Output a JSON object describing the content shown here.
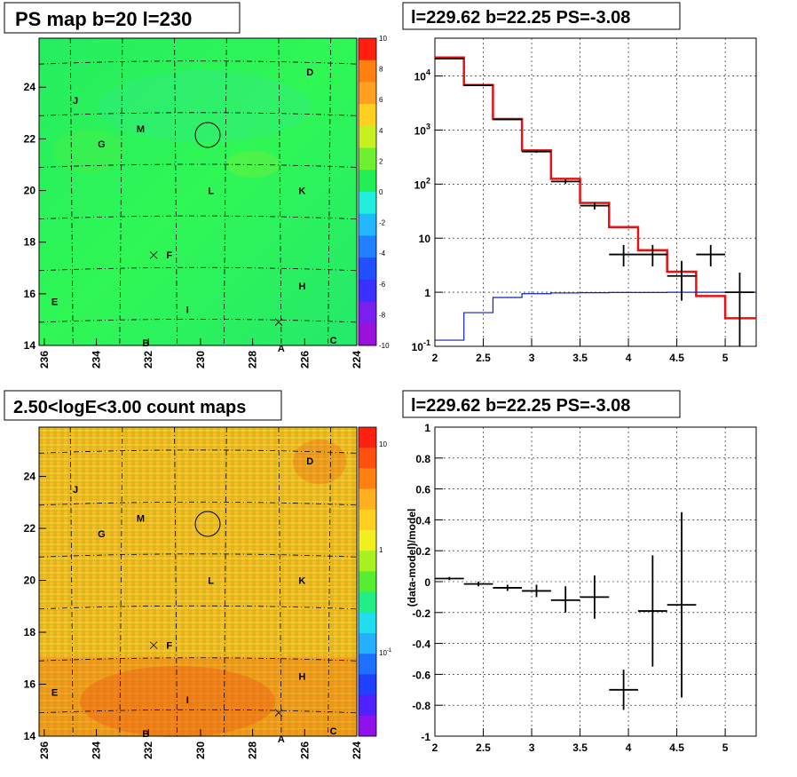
{
  "panels": {
    "ps_map": {
      "title": "PS map b=20 l=230",
      "x_ticks": [
        "236",
        "234",
        "232",
        "230",
        "228",
        "226",
        "224"
      ],
      "y_ticks": [
        "14",
        "16",
        "18",
        "20",
        "22",
        "24"
      ],
      "colorbar_ticks": [
        "10",
        "8",
        "6",
        "4",
        "2",
        "0",
        "-2",
        "-4",
        "-6",
        "-8",
        "-10"
      ],
      "colorbar_colors": [
        "#ff2010",
        "#ff8010",
        "#ffa020",
        "#ffd020",
        "#c8f020",
        "#6ef030",
        "#22ee55",
        "#22eedd",
        "#22b8ff",
        "#2080ff",
        "#2050ff",
        "#3a30ff",
        "#7a20ee",
        "#9a10dd"
      ]
    },
    "count_map": {
      "title": "2.50<logE<3.00 count maps",
      "x_ticks": [
        "236",
        "234",
        "232",
        "230",
        "228",
        "226",
        "224"
      ],
      "y_ticks": [
        "14",
        "16",
        "18",
        "20",
        "22",
        "24"
      ],
      "colorbar_ticks": [
        "10",
        "1",
        "10-1"
      ],
      "colorbar_colors": [
        "#ff2010",
        "#ff5010",
        "#ff8010",
        "#ffb020",
        "#ffd020",
        "#f0f020",
        "#a8f020",
        "#55ee30",
        "#22ee88",
        "#22ddee",
        "#22b0ff",
        "#2070ff",
        "#2040ff",
        "#5020ff",
        "#9010ee"
      ]
    },
    "spectrum": {
      "title": "l=229.62 b=22.25 PS=-3.08",
      "x_ticks": [
        "2",
        "2.5",
        "3",
        "3.5",
        "4",
        "4.5",
        "5"
      ],
      "y_ticks": [
        "10-1",
        "1",
        "10",
        "102",
        "103",
        "104"
      ]
    },
    "residual": {
      "title": "l=229.62 b=22.25 PS=-3.08",
      "ylabel": "(data-model)/model",
      "x_ticks": [
        "2",
        "2.5",
        "3",
        "3.5",
        "4",
        "4.5",
        "5"
      ],
      "y_ticks": [
        "1",
        "0.8",
        "0.6",
        "0.4",
        "0.2",
        "0",
        "-0.2",
        "-0.4",
        "-0.6",
        "-0.8",
        "-1"
      ]
    }
  },
  "map_sources": [
    {
      "label": "A",
      "l": 226.9,
      "b": 13.9
    },
    {
      "label": "B",
      "l": 232.1,
      "b": 14.1
    },
    {
      "label": "C",
      "l": 224.9,
      "b": 14.2
    },
    {
      "label": "D",
      "l": 225.8,
      "b": 24.6
    },
    {
      "label": "E",
      "l": 235.6,
      "b": 15.7
    },
    {
      "label": "F",
      "l": 231.2,
      "b": 17.5
    },
    {
      "label": "G",
      "l": 233.8,
      "b": 21.8
    },
    {
      "label": "H",
      "l": 226.1,
      "b": 16.3
    },
    {
      "label": "I",
      "l": 230.5,
      "b": 15.4
    },
    {
      "label": "J",
      "l": 234.8,
      "b": 23.5
    },
    {
      "label": "K",
      "l": 226.1,
      "b": 20.0
    },
    {
      "label": "L",
      "l": 229.6,
      "b": 20.0
    },
    {
      "label": "M",
      "l": 232.3,
      "b": 22.4
    }
  ],
  "map_crosses": [
    {
      "l": 231.8,
      "b": 17.5
    },
    {
      "l": 227.0,
      "b": 14.9
    }
  ],
  "roi": {
    "l": 229.62,
    "b": 22.25
  },
  "chart_data": [
    {
      "type": "line",
      "title": "l=229.62 b=22.25 PS=-3.08",
      "xlabel": "",
      "ylabel": "",
      "xlim": [
        2,
        5.32
      ],
      "ylim": [
        0.1,
        50000
      ],
      "y_scale": "log",
      "grid": true,
      "bin_edges": [
        2,
        2.3,
        2.6,
        2.9,
        3.2,
        3.5,
        3.8,
        4.1,
        4.4,
        4.7,
        5.0,
        5.32
      ],
      "series": [
        {
          "color": "#e81010",
          "values": [
            22000,
            6800,
            1600,
            420,
            125,
            45,
            16,
            6,
            2.4,
            0.85,
            0.33
          ]
        },
        {
          "color": "#1020c0",
          "values": [
            0.13,
            0.42,
            0.8,
            0.94,
            0.97,
            0.98,
            0.99,
            0.99,
            1.0,
            1.0,
            1.0
          ]
        }
      ],
      "points": [
        {
          "x": 2.15,
          "y": 21000,
          "xerr": 0.15,
          "ylo": 20700,
          "yhi": 21300
        },
        {
          "x": 2.45,
          "y": 6700,
          "xerr": 0.15,
          "ylo": 6600,
          "yhi": 6800
        },
        {
          "x": 2.75,
          "y": 1570,
          "xerr": 0.15,
          "ylo": 1530,
          "yhi": 1610
        },
        {
          "x": 3.05,
          "y": 400,
          "xerr": 0.15,
          "ylo": 380,
          "yhi": 420
        },
        {
          "x": 3.35,
          "y": 112,
          "xerr": 0.15,
          "ylo": 102,
          "yhi": 122
        },
        {
          "x": 3.65,
          "y": 40,
          "xerr": 0.15,
          "ylo": 34,
          "yhi": 46
        },
        {
          "x": 3.95,
          "y": 5,
          "xerr": 0.15,
          "ylo": 3,
          "yhi": 7.5
        },
        {
          "x": 4.25,
          "y": 5,
          "xerr": 0.15,
          "ylo": 3,
          "yhi": 7.5
        },
        {
          "x": 4.55,
          "y": 2,
          "xerr": 0.15,
          "ylo": 0.7,
          "yhi": 3.8
        },
        {
          "x": 4.85,
          "y": 5,
          "xerr": 0.15,
          "ylo": 3,
          "yhi": 7.5
        },
        {
          "x": 5.15,
          "y": 1,
          "xerr": 0.15,
          "ylo": 0.1,
          "yhi": 2.3
        }
      ]
    },
    {
      "type": "scatter",
      "title": "l=229.62 b=22.25 PS=-3.08",
      "xlabel": "",
      "ylabel": "(data-model)/model",
      "xlim": [
        2,
        5.32
      ],
      "ylim": [
        -1,
        1
      ],
      "grid": true,
      "points": [
        {
          "x": 2.15,
          "y": 0.02,
          "xerr": 0.15,
          "ylo": 0.01,
          "yhi": 0.03
        },
        {
          "x": 2.45,
          "y": -0.015,
          "xerr": 0.15,
          "ylo": -0.03,
          "yhi": 0.0
        },
        {
          "x": 2.75,
          "y": -0.04,
          "xerr": 0.15,
          "ylo": -0.06,
          "yhi": -0.02
        },
        {
          "x": 3.05,
          "y": -0.06,
          "xerr": 0.15,
          "ylo": -0.1,
          "yhi": -0.02
        },
        {
          "x": 3.35,
          "y": -0.12,
          "xerr": 0.15,
          "ylo": -0.2,
          "yhi": -0.03
        },
        {
          "x": 3.65,
          "y": -0.1,
          "xerr": 0.15,
          "ylo": -0.24,
          "yhi": 0.04
        },
        {
          "x": 3.95,
          "y": -0.7,
          "xerr": 0.15,
          "ylo": -0.83,
          "yhi": -0.57
        },
        {
          "x": 4.25,
          "y": -0.19,
          "xerr": 0.15,
          "ylo": -0.55,
          "yhi": 0.17
        },
        {
          "x": 4.55,
          "y": -0.15,
          "xerr": 0.15,
          "ylo": -0.75,
          "yhi": 0.45
        }
      ]
    }
  ]
}
